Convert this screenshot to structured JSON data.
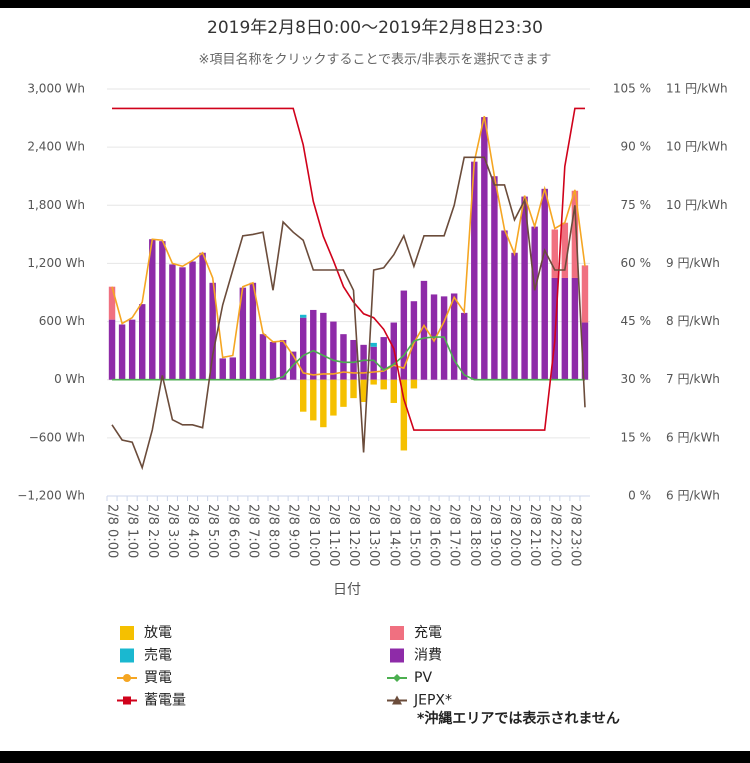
{
  "chart_data": {
    "type": "bar",
    "title": "2019年2月8日0:00〜2019年2月8日23:30",
    "subtitle": "※項目名称をクリックすることで表示/非表示を選択できます",
    "x_label": "日付",
    "categories": [
      "2/8 0:00",
      null,
      "2/8 1:00",
      null,
      "2/8 2:00",
      null,
      "2/8 3:00",
      null,
      "2/8 4:00",
      null,
      "2/8 5:00",
      null,
      "2/8 6:00",
      null,
      "2/8 7:00",
      null,
      "2/8 8:00",
      null,
      "2/8 9:00",
      null,
      "2/8 10:00",
      null,
      "2/8 11:00",
      null,
      "2/8 12:00",
      null,
      "2/8 13:00",
      null,
      "2/8 14:00",
      null,
      "2/8 15:00",
      null,
      "2/8 16:00",
      null,
      "2/8 17:00",
      null,
      "2/8 18:00",
      null,
      "2/8 19:00",
      null,
      "2/8 20:00",
      null,
      "2/8 21:00",
      null,
      "2/8 22:00",
      null,
      "2/8 23:00",
      null
    ],
    "ylim": [
      -1200,
      3000
    ],
    "yticks": [
      {
        "value": -1200,
        "label": "−1,200 Wh"
      },
      {
        "value": -600,
        "label": "−600 Wh"
      },
      {
        "value": 0,
        "label": "0 Wh"
      },
      {
        "value": 600,
        "label": "600 Wh"
      },
      {
        "value": 1200,
        "label": "1,200 Wh"
      },
      {
        "value": 1800,
        "label": "1,800 Wh"
      },
      {
        "value": 2400,
        "label": "2,400 Wh"
      },
      {
        "value": 3000,
        "label": "3,000 Wh"
      }
    ],
    "y2lim": [
      0,
      105
    ],
    "y2ticks": [
      {
        "value": 0,
        "label": "0 %"
      },
      {
        "value": 15,
        "label": "15 %"
      },
      {
        "value": 30,
        "label": "30 %"
      },
      {
        "value": 45,
        "label": "45 %"
      },
      {
        "value": 60,
        "label": "60 %"
      },
      {
        "value": 75,
        "label": "75 %"
      },
      {
        "value": 90,
        "label": "90 %"
      },
      {
        "value": 105,
        "label": "105 %"
      }
    ],
    "y3lim": [
      5.6,
      11.2
    ],
    "y3ticks": [
      {
        "value": 5.6,
        "label": "6 円/kWh"
      },
      {
        "value": 6.4,
        "label": "6 円/kWh"
      },
      {
        "value": 7.2,
        "label": "7 円/kWh"
      },
      {
        "value": 8,
        "label": "8 円/kWh"
      },
      {
        "value": 8.8,
        "label": "9 円/kWh"
      },
      {
        "value": 9.6,
        "label": "10 円/kWh"
      },
      {
        "value": 10.4,
        "label": "10 円/kWh"
      },
      {
        "value": 11.2,
        "label": "11 円/kWh"
      }
    ],
    "grid": true,
    "series": [
      {
        "name": "放電",
        "type": "bar",
        "axis": "y",
        "color": "#f5c000",
        "values": [
          0,
          0,
          0,
          0,
          0,
          0,
          0,
          0,
          0,
          0,
          0,
          0,
          0,
          0,
          0,
          0,
          0,
          0,
          0,
          -330,
          -420,
          -490,
          -370,
          -280,
          -190,
          -230,
          -50,
          -100,
          -240,
          -730,
          -90,
          0,
          0,
          0,
          0,
          0,
          0,
          0,
          0,
          0,
          0,
          0,
          0,
          0,
          0,
          0,
          0,
          0
        ]
      },
      {
        "name": "充電",
        "type": "bar",
        "axis": "y",
        "color": "#f07080",
        "values": [
          340,
          0,
          0,
          0,
          0,
          0,
          0,
          0,
          0,
          0,
          0,
          0,
          0,
          0,
          0,
          0,
          0,
          0,
          0,
          0,
          0,
          0,
          0,
          0,
          0,
          0,
          0,
          0,
          0,
          0,
          0,
          0,
          0,
          0,
          0,
          0,
          0,
          0,
          0,
          0,
          0,
          0,
          0,
          0,
          500,
          570,
          900,
          590
        ]
      },
      {
        "name": "売電",
        "type": "bar",
        "axis": "y",
        "color": "#1ab8d0",
        "values": [
          0,
          0,
          0,
          0,
          0,
          0,
          0,
          0,
          0,
          0,
          0,
          0,
          0,
          0,
          0,
          0,
          0,
          0,
          0,
          30,
          0,
          0,
          0,
          0,
          0,
          0,
          40,
          0,
          0,
          0,
          0,
          0,
          0,
          0,
          0,
          0,
          0,
          0,
          0,
          0,
          0,
          0,
          0,
          0,
          0,
          0,
          0,
          0
        ]
      },
      {
        "name": "消費",
        "type": "bar",
        "axis": "y",
        "color": "#8e2ba8",
        "values": [
          620,
          570,
          620,
          780,
          1450,
          1430,
          1190,
          1160,
          1220,
          1310,
          1000,
          220,
          230,
          950,
          1000,
          470,
          390,
          410,
          290,
          640,
          720,
          690,
          600,
          470,
          410,
          360,
          340,
          440,
          590,
          920,
          810,
          1020,
          880,
          860,
          890,
          690,
          2250,
          2710,
          2100,
          1540,
          1310,
          1890,
          1580,
          1970,
          1050,
          1050,
          1050,
          590
        ]
      },
      {
        "name": "買電",
        "type": "line",
        "axis": "y",
        "color": "#f5a623",
        "marker": "circle",
        "values": [
          960,
          580,
          640,
          800,
          1450,
          1440,
          1200,
          1170,
          1230,
          1310,
          1050,
          230,
          250,
          960,
          1000,
          480,
          390,
          400,
          250,
          70,
          50,
          60,
          60,
          80,
          70,
          70,
          80,
          90,
          150,
          120,
          380,
          560,
          400,
          600,
          850,
          700,
          2250,
          2720,
          2100,
          1550,
          1300,
          1900,
          1580,
          1970,
          1560,
          1620,
          1960,
          1170
        ]
      },
      {
        "name": "PV",
        "type": "line",
        "axis": "y",
        "color": "#4caf50",
        "marker": "diamond",
        "values": [
          0,
          0,
          0,
          0,
          0,
          0,
          0,
          0,
          0,
          0,
          0,
          0,
          0,
          0,
          0,
          0,
          0,
          30,
          150,
          250,
          300,
          250,
          200,
          180,
          180,
          200,
          200,
          100,
          160,
          250,
          400,
          430,
          440,
          440,
          200,
          50,
          0,
          0,
          0,
          0,
          0,
          0,
          0,
          0,
          0,
          0,
          0,
          0
        ]
      },
      {
        "name": "蓄電量",
        "type": "line",
        "axis": "y2",
        "color": "#d0021b",
        "marker": "square",
        "values": [
          100,
          100,
          100,
          100,
          100,
          100,
          100,
          100,
          100,
          100,
          100,
          100,
          100,
          100,
          100,
          100,
          100,
          100,
          100,
          90.6,
          76,
          67,
          60.7,
          54,
          50,
          47,
          46,
          43,
          38,
          25,
          17,
          17,
          17,
          17,
          17,
          17,
          17,
          17,
          17,
          17,
          17,
          17,
          17,
          17,
          40,
          85,
          100,
          100
        ]
      },
      {
        "name": "JEPX*",
        "type": "line",
        "axis": "y3",
        "color": "#6b4c3b",
        "marker": "triangle",
        "values": [
          6.58,
          6.37,
          6.34,
          5.99,
          6.51,
          7.26,
          6.65,
          6.58,
          6.58,
          6.54,
          7.54,
          8.23,
          8.71,
          9.18,
          9.2,
          9.23,
          8.43,
          9.37,
          9.23,
          9.12,
          8.71,
          8.71,
          8.71,
          8.71,
          8.43,
          6.2,
          8.71,
          8.74,
          8.92,
          9.18,
          8.76,
          9.18,
          9.18,
          9.18,
          9.6,
          10.26,
          10.26,
          10.26,
          9.88,
          9.88,
          9.4,
          9.67,
          8.43,
          8.98,
          8.71,
          8.71,
          9.6,
          6.82
        ]
      }
    ],
    "legend_note": "*沖縄エリアでは表示されません"
  }
}
